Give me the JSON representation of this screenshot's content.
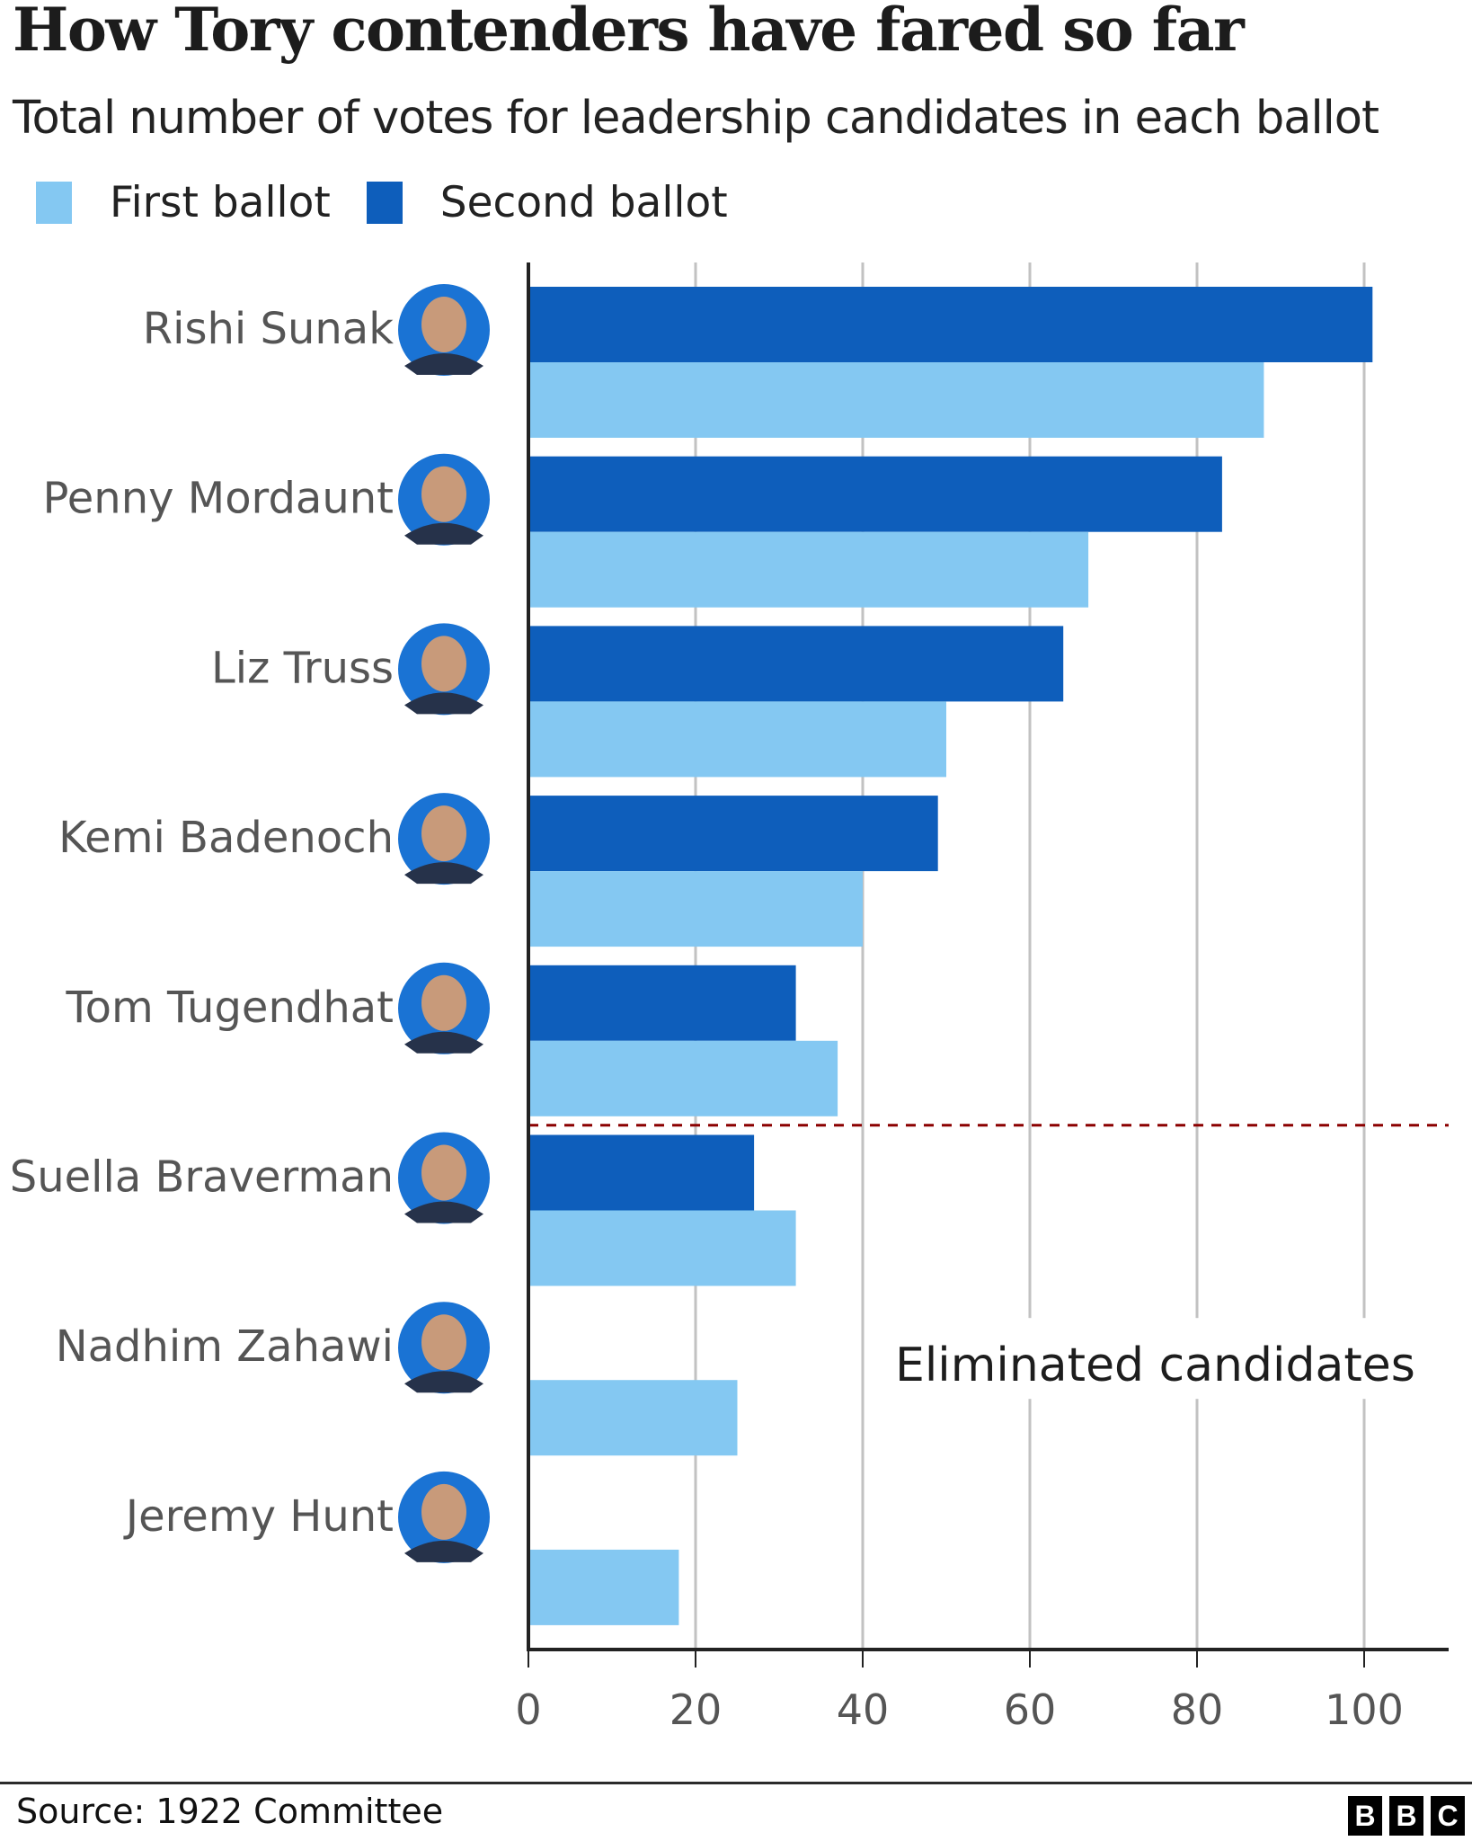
{
  "header": {
    "title": "How Tory contenders have fared so far",
    "subtitle": "Total number of votes for leadership candidates in each ballot"
  },
  "legend": [
    {
      "label": "First ballot",
      "color": "#84c8f2"
    },
    {
      "label": "Second ballot",
      "color": "#0e5ebb"
    }
  ],
  "annotation": {
    "eliminated_label": "Eliminated candidates",
    "cutoff_line_color": "#8b0000"
  },
  "footer": {
    "source": "Source: 1922 Committee",
    "logo_letters": [
      "B",
      "B",
      "C"
    ]
  },
  "chart_data": {
    "type": "bar",
    "orientation": "horizontal",
    "title": "How Tory contenders have fared so far",
    "subtitle": "Total number of votes for leadership candidates in each ballot",
    "xlabel": "",
    "ylabel": "",
    "xlim": [
      0,
      110
    ],
    "xticks": [
      0,
      20,
      40,
      60,
      80,
      100
    ],
    "grid": true,
    "legend_position": "top-left",
    "categories": [
      "Rishi Sunak",
      "Penny Mordaunt",
      "Liz Truss",
      "Kemi Badenoch",
      "Tom Tugendhat",
      "Suella Braverman",
      "Nadhim Zahawi",
      "Jeremy Hunt"
    ],
    "series": [
      {
        "name": "Second ballot",
        "color": "#0e5ebb",
        "values": [
          101,
          83,
          64,
          49,
          32,
          27,
          null,
          null
        ]
      },
      {
        "name": "First ballot",
        "color": "#84c8f2",
        "values": [
          88,
          67,
          50,
          40,
          37,
          32,
          25,
          18
        ]
      }
    ],
    "cutoff_after_category": "Tom Tugendhat",
    "annotations": [
      "Eliminated candidates"
    ],
    "avatar_ring_color": "#1a73d4"
  }
}
